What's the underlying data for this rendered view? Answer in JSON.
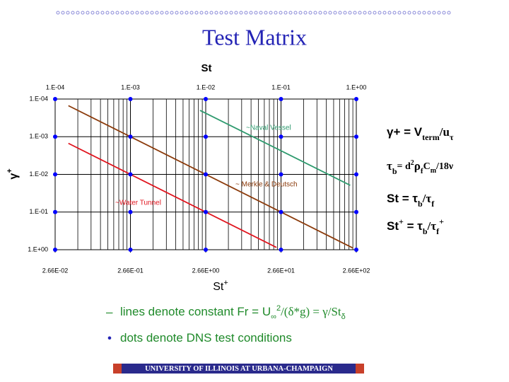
{
  "title": "Test Matrix",
  "chart_data": {
    "type": "line",
    "x_label": "St",
    "x2_label": [
      "St",
      "+"
    ],
    "y_label": [
      "γ",
      "+"
    ],
    "xlog": true,
    "ylog": true,
    "y_inverted": true,
    "grid": true,
    "minor_x_grid": true,
    "xlim": [
      0.0001,
      1
    ],
    "xticks": [
      {
        "value": 0.0001,
        "label": "1.E-04"
      },
      {
        "value": 0.001,
        "label": "1.E-03"
      },
      {
        "value": 0.01,
        "label": "1.E-02"
      },
      {
        "value": 0.1,
        "label": "1.E-01"
      },
      {
        "value": 1,
        "label": "1.E+00"
      }
    ],
    "x2lim": [
      0.0266,
      266
    ],
    "x2ticks": [
      {
        "value": 0.0266,
        "label": "2.66E-02"
      },
      {
        "value": 0.266,
        "label": "2.66E-01"
      },
      {
        "value": 2.66,
        "label": "2.66E+00"
      },
      {
        "value": 26.6,
        "label": "2.66E+01"
      },
      {
        "value": 266,
        "label": "2.66E+02"
      }
    ],
    "ylim": [
      0.0001,
      1
    ],
    "yticks": [
      {
        "value": 0.0001,
        "label": "1.E-04"
      },
      {
        "value": 0.001,
        "label": "1.E-03"
      },
      {
        "value": 0.01,
        "label": "1.E-02"
      },
      {
        "value": 0.1,
        "label": "1.E-01"
      },
      {
        "value": 1,
        "label": "1.E+00"
      }
    ],
    "series": [
      {
        "name": "~Naval Vessel",
        "color": "#2e9a6e",
        "x": [
          0.0084,
          0.83
        ],
        "values": [
          0.0002,
          0.0195
        ]
      },
      {
        "name": "~ Merkle & Deutsch",
        "color": "#8b3a0a",
        "x": [
          0.00015,
          0.9
        ],
        "values": [
          0.00015,
          0.9
        ]
      },
      {
        "name": "~Water Tunnel",
        "color": "#e0141e",
        "x": [
          0.00015,
          0.087
        ],
        "values": [
          0.0015,
          0.87
        ]
      }
    ],
    "dots": {
      "color": "#0000ff",
      "x": [
        0.0001,
        0.001,
        0.01,
        0.1,
        1,
        0.0001,
        0.001,
        0.01,
        0.1,
        1,
        0.0001,
        0.001,
        0.01,
        0.1,
        1,
        0.0001,
        0.001,
        0.01,
        0.1,
        1,
        0.0001,
        0.001,
        0.01,
        0.1,
        1
      ],
      "y": [
        0.0001,
        0.0001,
        0.0001,
        0.0001,
        0.0001,
        0.001,
        0.001,
        0.001,
        0.001,
        0.001,
        0.01,
        0.01,
        0.01,
        0.01,
        0.01,
        0.1,
        0.1,
        0.1,
        0.1,
        0.1,
        1,
        1,
        1,
        1,
        1
      ]
    }
  },
  "equations": [
    [
      "γ+ = V",
      "term",
      "/u",
      "τ"
    ],
    [
      "τ",
      "b",
      "= d",
      "2",
      "ρ",
      "f",
      "C",
      "m",
      "/18ν"
    ],
    [
      "St = τ",
      "b",
      "/τ",
      "f"
    ],
    [
      "St",
      "+",
      " = τ",
      "b",
      "/τ",
      "f",
      "+"
    ]
  ],
  "bullets": [
    {
      "marker": "–",
      "parts": [
        "lines denote constant Fr = U",
        "∞",
        "2",
        "/(δ*g) = γ/St",
        "δ"
      ]
    },
    {
      "marker": "•",
      "parts": [
        "dots denote DNS test conditions"
      ]
    }
  ],
  "footer": "UNIVERSITY OF ILLINOIS AT URBANA-CHAMPAIGN"
}
